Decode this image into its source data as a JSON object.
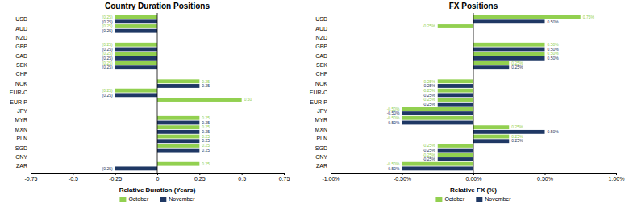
{
  "chart_data": [
    {
      "type": "bar",
      "orientation": "horizontal",
      "title": "Country Duration Positions",
      "xlabel": "Relative Duration (Years)",
      "categories": [
        "USD",
        "AUD",
        "NZD",
        "GBP",
        "CAD",
        "SEK",
        "CHF",
        "NOK",
        "EUR-C",
        "EUR-P",
        "JPY",
        "MYR",
        "MXN",
        "PLN",
        "SGD",
        "CNY",
        "ZAR"
      ],
      "series": [
        {
          "name": "October",
          "color": "#92d050",
          "values": [
            -0.25,
            -0.25,
            0,
            -0.25,
            -0.25,
            -0.25,
            0,
            0.25,
            -0.25,
            0.5,
            0,
            0.25,
            0.25,
            0.25,
            0.25,
            0,
            0.25
          ],
          "value_labels": [
            "(0.25)",
            "(0.25)",
            null,
            "(0.25)",
            "(0.25)",
            "(0.25)",
            null,
            "0.25",
            "(0.25)",
            "0.50",
            null,
            "0.25",
            "0.25",
            "0.25",
            "0.25",
            null,
            "0.25"
          ]
        },
        {
          "name": "November",
          "color": "#1f3864",
          "values": [
            -0.25,
            -0.25,
            0,
            -0.25,
            -0.25,
            -0.25,
            0,
            0.25,
            -0.25,
            0,
            0,
            0.25,
            0.25,
            0.25,
            0.25,
            0,
            -0.25
          ],
          "value_labels": [
            "(0.25)",
            "(0.25)",
            null,
            "(0.25)",
            "(0.25)",
            "(0.25)",
            null,
            "0.25",
            "(0.25)",
            null,
            null,
            "0.25",
            "0.25",
            "0.25",
            "0.25",
            null,
            "(0.25)"
          ]
        }
      ],
      "xlim": [
        -0.75,
        0.75
      ],
      "xticks": [
        -0.75,
        -0.5,
        -0.25,
        0,
        0.25,
        0.5,
        0.75
      ],
      "data_labels": true,
      "grid": false,
      "legend": "bottom"
    },
    {
      "type": "bar",
      "orientation": "horizontal",
      "title": "FX Positions",
      "xlabel": "Relative FX (%)",
      "categories": [
        "USD",
        "AUD",
        "NZD",
        "GBP",
        "CAD",
        "SEK",
        "CHF",
        "NOK",
        "EUR-C",
        "EUR-P",
        "JPY",
        "MYR",
        "MXN",
        "PLN",
        "SGD",
        "CNY",
        "ZAR"
      ],
      "series": [
        {
          "name": "October",
          "color": "#92d050",
          "values": [
            0.75,
            -0.25,
            0,
            0.5,
            0.5,
            0.25,
            0,
            -0.25,
            -0.25,
            -0.25,
            -0.5,
            -0.5,
            0.25,
            0.25,
            -0.25,
            -0.25,
            -0.5
          ],
          "value_labels": [
            "0.75%",
            "-0.25%",
            null,
            "0.50%",
            "0.50%",
            "0.25%",
            null,
            "-0.25%",
            "-0.25%",
            "-0.25%",
            "-0.50%",
            "-0.50%",
            "0.25%",
            "0.25%",
            "-0.25%",
            "-0.25%",
            "-0.50%"
          ]
        },
        {
          "name": "November",
          "color": "#1f3864",
          "values": [
            0.5,
            0,
            0,
            0.5,
            0.5,
            0.25,
            0,
            -0.25,
            -0.25,
            -0.25,
            -0.5,
            -0.5,
            0.5,
            0.25,
            -0.25,
            -0.25,
            -0.5
          ],
          "value_labels": [
            "0.50%",
            null,
            null,
            "0.50%",
            "0.50%",
            "0.25%",
            null,
            "-0.25%",
            "-0.25%",
            "-0.25%",
            "-0.50%",
            "-0.50%",
            "0.50%",
            "0.25%",
            "-0.25%",
            "-0.25%",
            "-0.50%"
          ]
        }
      ],
      "xlim": [
        -1.0,
        1.0
      ],
      "xticks": [
        {
          "value": -1.0,
          "label": "-1.00%"
        },
        {
          "value": -0.5,
          "label": "-0.50%"
        },
        {
          "value": 0,
          "label": "0.00%"
        },
        {
          "value": 0.5,
          "label": "0.50%"
        },
        {
          "value": 1.0,
          "label": "1.00%"
        }
      ],
      "data_labels": true,
      "grid": false,
      "legend": "bottom"
    }
  ]
}
